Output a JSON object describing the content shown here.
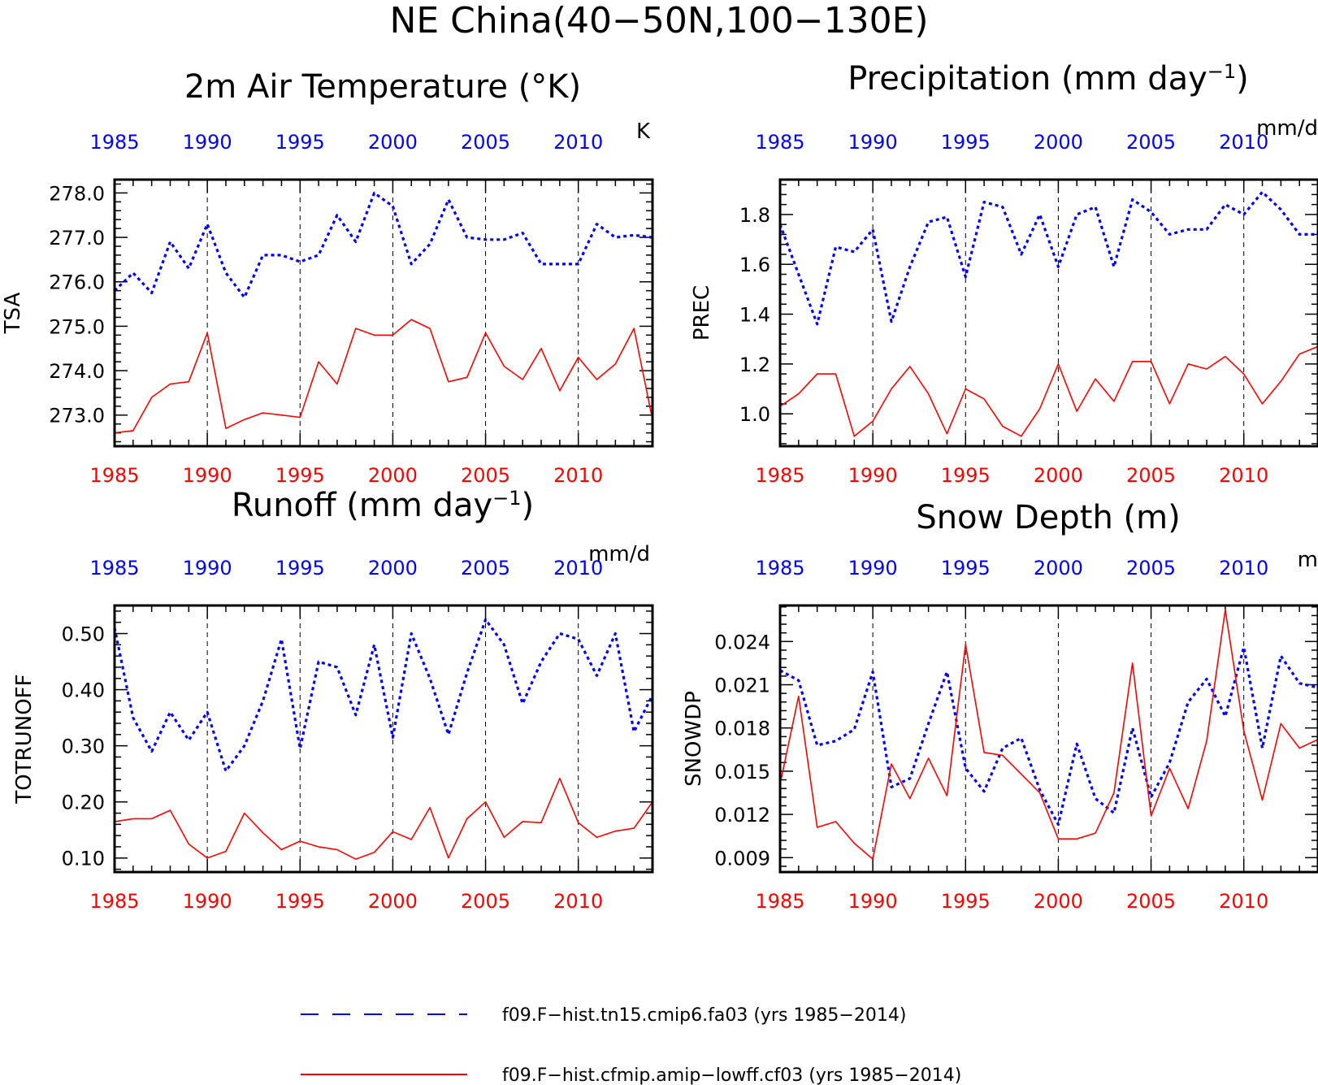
{
  "main_title": "NE China(40−50N,100−130E)",
  "colors": {
    "case1": "#0000ff",
    "case2": "#ff0000",
    "axis": "#000000"
  },
  "legend": [
    {
      "label": "f09.F−hist.tn15.cmip6.fa03 (yrs 1985−2014)",
      "color": "#0000ff",
      "style": "dashed"
    },
    {
      "label": "f09.F−hist.cfmip.amip−lowff.cf03 (yrs 1985−2014)",
      "color": "#ff0000",
      "style": "solid"
    }
  ],
  "chart_data": [
    {
      "type": "line",
      "title": "2m Air Temperature (°K)",
      "title_sup": "",
      "units": "K",
      "ylabel": "TSA",
      "xlim": [
        1985,
        2014
      ],
      "xticks": [
        1985,
        1990,
        1995,
        2000,
        2005,
        2010
      ],
      "ylim": [
        272.3,
        278.3
      ],
      "yticks": [
        273.0,
        274.0,
        275.0,
        276.0,
        277.0,
        278.0
      ],
      "ytick_labels": [
        "273.0",
        "274.0",
        "275.0",
        "276.0",
        "277.0",
        "278.0"
      ],
      "x": [
        1985,
        1986,
        1987,
        1988,
        1989,
        1990,
        1991,
        1992,
        1993,
        1994,
        1995,
        1996,
        1997,
        1998,
        1999,
        2000,
        2001,
        2002,
        2003,
        2004,
        2005,
        2006,
        2007,
        2008,
        2009,
        2010,
        2011,
        2012,
        2013,
        2014
      ],
      "series": [
        {
          "values": [
            275.8,
            276.2,
            275.75,
            276.9,
            276.3,
            277.3,
            276.2,
            275.65,
            276.6,
            276.6,
            276.45,
            276.6,
            277.5,
            276.9,
            278.0,
            277.7,
            276.4,
            276.85,
            277.85,
            277.0,
            276.95,
            276.95,
            277.1,
            276.4,
            276.4,
            276.4,
            277.3,
            277.0,
            277.05,
            277.0
          ]
        },
        {
          "values": [
            272.6,
            272.65,
            273.4,
            273.7,
            273.75,
            274.85,
            272.7,
            272.9,
            273.05,
            273.0,
            272.95,
            274.2,
            273.7,
            274.95,
            274.8,
            274.8,
            275.15,
            274.95,
            273.75,
            273.85,
            274.85,
            274.1,
            273.8,
            274.5,
            273.55,
            274.3,
            273.8,
            274.15,
            274.95,
            272.9
          ]
        }
      ]
    },
    {
      "type": "line",
      "title": "Precipitation (mm day",
      "title_sup": "−1",
      "title_end": ")",
      "units": "mm/d",
      "ylabel": "PREC",
      "xlim": [
        1985,
        2014
      ],
      "xticks": [
        1985,
        1990,
        1995,
        2000,
        2005,
        2010
      ],
      "ylim": [
        0.87,
        1.94
      ],
      "yticks": [
        1.0,
        1.2,
        1.4,
        1.6,
        1.8
      ],
      "ytick_labels": [
        "1.0",
        "1.2",
        "1.4",
        "1.6",
        "1.8"
      ],
      "x": [
        1985,
        1986,
        1987,
        1988,
        1989,
        1990,
        1991,
        1992,
        1993,
        1994,
        1995,
        1996,
        1997,
        1998,
        1999,
        2000,
        2001,
        2002,
        2003,
        2004,
        2005,
        2006,
        2007,
        2008,
        2009,
        2010,
        2011,
        2012,
        2013,
        2014
      ],
      "series": [
        {
          "values": [
            1.76,
            1.56,
            1.36,
            1.67,
            1.65,
            1.74,
            1.37,
            1.59,
            1.77,
            1.79,
            1.55,
            1.85,
            1.83,
            1.64,
            1.8,
            1.59,
            1.8,
            1.83,
            1.59,
            1.86,
            1.81,
            1.72,
            1.74,
            1.74,
            1.84,
            1.8,
            1.89,
            1.82,
            1.72,
            1.72
          ]
        },
        {
          "values": [
            1.03,
            1.08,
            1.16,
            1.16,
            0.91,
            0.97,
            1.1,
            1.19,
            1.08,
            0.92,
            1.1,
            1.06,
            0.95,
            0.91,
            1.02,
            1.2,
            1.01,
            1.14,
            1.05,
            1.21,
            1.21,
            1.04,
            1.2,
            1.18,
            1.23,
            1.16,
            1.04,
            1.13,
            1.24,
            1.27
          ]
        }
      ]
    },
    {
      "type": "line",
      "title": "Runoff (mm day",
      "title_sup": "−1",
      "title_end": ")",
      "units": "mm/d",
      "ylabel": "TOTRUNOFF",
      "xlim": [
        1985,
        2014
      ],
      "xticks": [
        1985,
        1990,
        1995,
        2000,
        2005,
        2010
      ],
      "ylim": [
        0.075,
        0.55
      ],
      "yticks": [
        0.1,
        0.2,
        0.3,
        0.4,
        0.5
      ],
      "ytick_labels": [
        "0.10",
        "0.20",
        "0.30",
        "0.40",
        "0.50"
      ],
      "x": [
        1985,
        1986,
        1987,
        1988,
        1989,
        1990,
        1991,
        1992,
        1993,
        1994,
        1995,
        1996,
        1997,
        1998,
        1999,
        2000,
        2001,
        2002,
        2003,
        2004,
        2005,
        2006,
        2007,
        2008,
        2009,
        2010,
        2011,
        2012,
        2013,
        2014
      ],
      "series": [
        {
          "values": [
            0.51,
            0.35,
            0.29,
            0.36,
            0.31,
            0.36,
            0.255,
            0.3,
            0.38,
            0.49,
            0.295,
            0.45,
            0.44,
            0.355,
            0.48,
            0.315,
            0.5,
            0.42,
            0.32,
            0.43,
            0.525,
            0.48,
            0.375,
            0.45,
            0.5,
            0.49,
            0.425,
            0.5,
            0.325,
            0.39
          ]
        },
        {
          "values": [
            0.165,
            0.17,
            0.17,
            0.185,
            0.125,
            0.1,
            0.112,
            0.18,
            0.145,
            0.115,
            0.13,
            0.12,
            0.115,
            0.098,
            0.11,
            0.147,
            0.133,
            0.19,
            0.1,
            0.17,
            0.2,
            0.137,
            0.165,
            0.163,
            0.242,
            0.163,
            0.137,
            0.148,
            0.153,
            0.2
          ]
        }
      ]
    },
    {
      "type": "line",
      "title": "Snow Depth (m)",
      "title_sup": "",
      "units": "m",
      "ylabel": "SNOWDP",
      "xlim": [
        1985,
        2014
      ],
      "xticks": [
        1985,
        1990,
        1995,
        2000,
        2005,
        2010
      ],
      "ylim": [
        0.008,
        0.0265
      ],
      "yticks": [
        0.009,
        0.012,
        0.015,
        0.018,
        0.021,
        0.024
      ],
      "ytick_labels": [
        "0.009",
        "0.012",
        "0.015",
        "0.018",
        "0.021",
        "0.024"
      ],
      "x": [
        1985,
        1986,
        1987,
        1988,
        1989,
        1990,
        1991,
        1992,
        1993,
        1994,
        1995,
        1996,
        1997,
        1998,
        1999,
        2000,
        2001,
        2002,
        2003,
        2004,
        2005,
        2006,
        2007,
        2008,
        2009,
        2010,
        2011,
        2012,
        2013,
        2014
      ],
      "series": [
        {
          "values": [
            0.022,
            0.0213,
            0.0168,
            0.0171,
            0.0179,
            0.0219,
            0.0139,
            0.0145,
            0.0183,
            0.0219,
            0.0152,
            0.0136,
            0.0166,
            0.0173,
            0.0137,
            0.0113,
            0.0169,
            0.0131,
            0.0121,
            0.018,
            0.0132,
            0.0156,
            0.0198,
            0.0214,
            0.0188,
            0.0236,
            0.0166,
            0.023,
            0.0211,
            0.0208
          ]
        },
        {
          "values": [
            0.0141,
            0.0202,
            0.0111,
            0.0115,
            0.01,
            0.0089,
            0.0155,
            0.0131,
            0.0159,
            0.0133,
            0.0238,
            0.0163,
            0.0161,
            0.0148,
            0.0135,
            0.0103,
            0.0103,
            0.0107,
            0.0135,
            0.0225,
            0.0119,
            0.0152,
            0.0124,
            0.0171,
            0.0262,
            0.0178,
            0.013,
            0.0183,
            0.0166,
            0.0172
          ]
        }
      ]
    }
  ]
}
